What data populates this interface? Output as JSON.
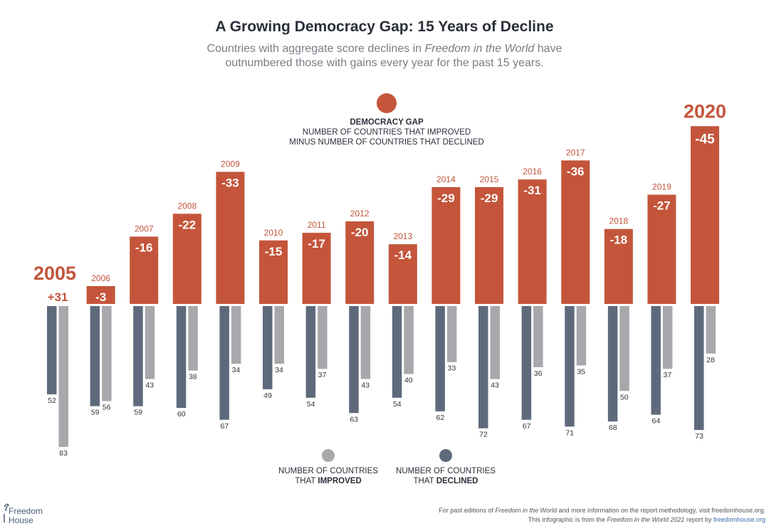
{
  "title": "A Growing Democracy Gap: 15 Years of Decline",
  "subtitle": {
    "line1_pre": "Countries with aggregate score declines in ",
    "line1_italic": "Freedom in the World",
    "line1_post": " have",
    "line2": "outnumbered those with gains every year for the past 15 years."
  },
  "legend_gap": {
    "heading": "DEMOCRACY GAP",
    "line1": "NUMBER OF COUNTRIES THAT IMPROVED",
    "line2": "MINUS NUMBER OF COUNTRIES THAT DECLINED"
  },
  "legend_improved": {
    "line1": "NUMBER OF COUNTRIES",
    "line2_pre": "THAT ",
    "line2_bold": "IMPROVED"
  },
  "legend_declined": {
    "line1": "NUMBER OF COUNTRIES",
    "line2_pre": "THAT ",
    "line2_bold": "DECLINED"
  },
  "colors": {
    "gap": "#c4553b",
    "improved": "#a7a8ac",
    "declined": "#5e6a7c",
    "title": "#2b2f3a"
  },
  "footer": {
    "line1_pre": "For past editions of ",
    "line1_italic": "Freedom in the World",
    "line1_post": " and more information on the report methodology, visit freedomhouse.org.",
    "line2_pre": "This infographic is from the ",
    "line2_italic": "Freedom in the World 2021",
    "line2_mid": " report by ",
    "line2_link": "freedomhouse.org"
  },
  "logo": {
    "line1": "Freedom",
    "line2": "House"
  },
  "chart_data": {
    "type": "bar",
    "categories": [
      "2005",
      "2006",
      "2007",
      "2008",
      "2009",
      "2010",
      "2011",
      "2012",
      "2013",
      "2014",
      "2015",
      "2016",
      "2017",
      "2018",
      "2019",
      "2020"
    ],
    "highlighted_categories": [
      "2005",
      "2020"
    ],
    "series": [
      {
        "name": "DEMOCRACY GAP",
        "values": [
          31,
          -3,
          -16,
          -22,
          -33,
          -15,
          -17,
          -20,
          -14,
          -29,
          -29,
          -31,
          -36,
          -18,
          -27,
          -45
        ],
        "labels": [
          "+31",
          "-3",
          "-16",
          "-22",
          "-33",
          "-15",
          "-17",
          "-20",
          "-14",
          "-29",
          "-29",
          "-31",
          "-36",
          "-18",
          "-27",
          "-45"
        ]
      },
      {
        "name": "NUMBER OF COUNTRIES THAT DECLINED",
        "values": [
          52,
          59,
          59,
          60,
          67,
          49,
          54,
          63,
          54,
          62,
          72,
          67,
          71,
          68,
          64,
          73
        ]
      },
      {
        "name": "NUMBER OF COUNTRIES THAT IMPROVED",
        "values": [
          83,
          56,
          43,
          38,
          34,
          34,
          37,
          43,
          40,
          33,
          43,
          36,
          35,
          50,
          37,
          28
        ]
      }
    ],
    "gap_bars_direction": "up for decline magnitude",
    "count_bars_direction": "down",
    "grid": false
  }
}
